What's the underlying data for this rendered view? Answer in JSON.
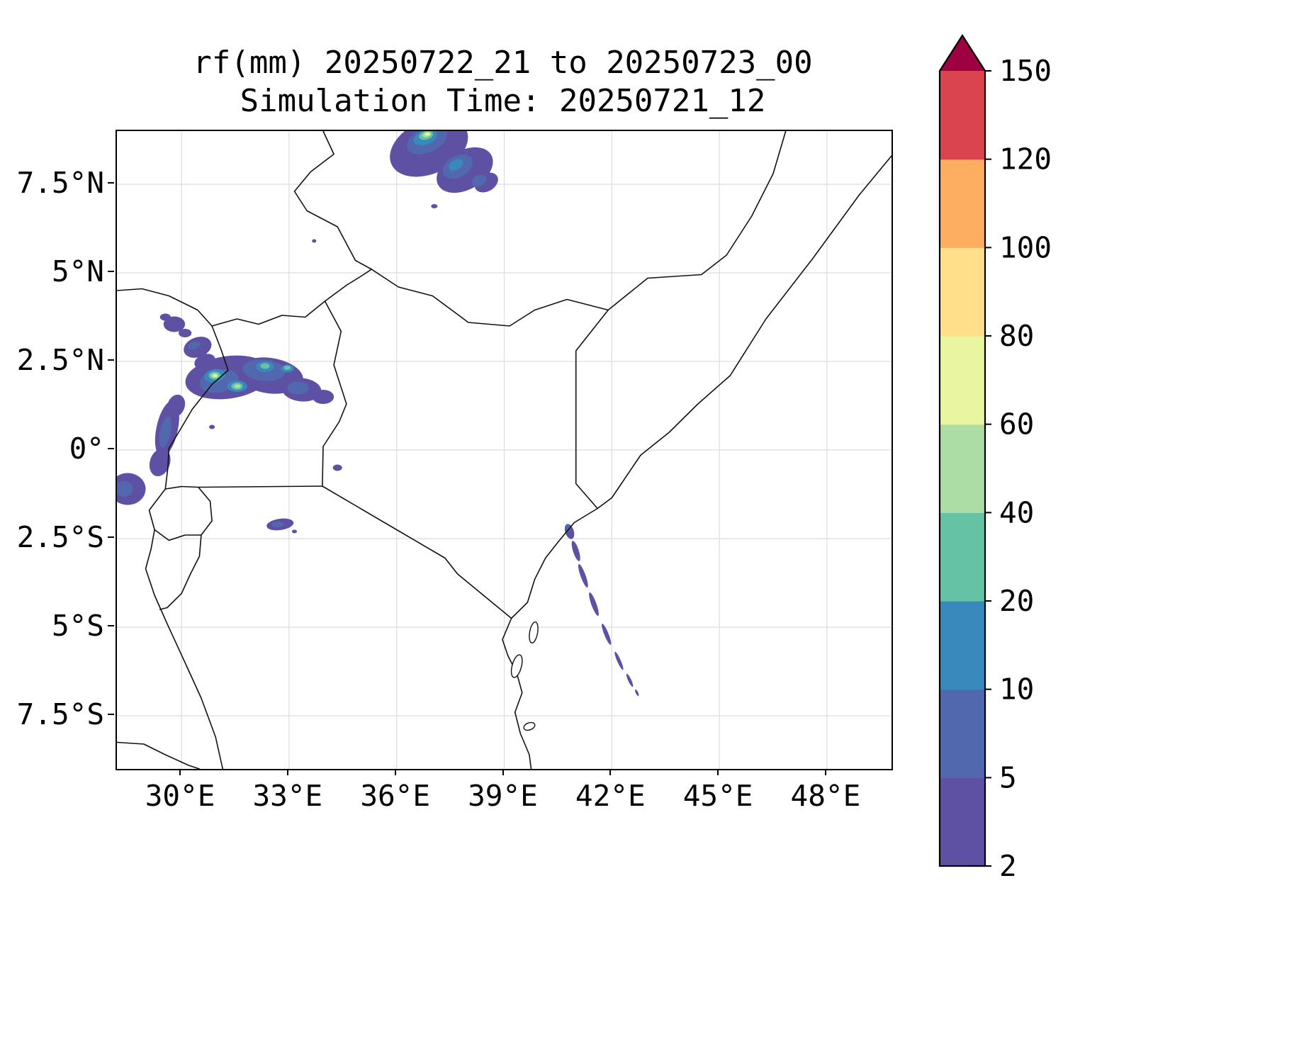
{
  "title": "rf(mm) 20250722_21 to 20250723_00",
  "subtitle": "Simulation Time: 20250721_12",
  "chart_data": {
    "type": "heatmap",
    "title": "rf(mm) 20250722_21 to 20250723_00",
    "subtitle": "Simulation Time: 20250721_12",
    "variable": "rainfall accumulation rf (mm) over East Africa",
    "grid": true,
    "legend_position": "right-colorbar",
    "x_axis": {
      "tick_labels": [
        "30°E",
        "33°E",
        "36°E",
        "39°E",
        "42°E",
        "45°E",
        "48°E"
      ],
      "tick_values": [
        30,
        33,
        36,
        39,
        42,
        45,
        48
      ],
      "range": [
        28.2,
        49.8
      ]
    },
    "y_axis": {
      "tick_labels": [
        "7.5°N",
        "5°N",
        "2.5°N",
        "0°",
        "2.5°S",
        "5°S",
        "7.5°S"
      ],
      "tick_values": [
        7.5,
        5,
        2.5,
        0,
        -2.5,
        -5,
        -7.5
      ],
      "range": [
        -9,
        9
      ]
    },
    "colorbar": {
      "levels": [
        2,
        5,
        10,
        20,
        40,
        60,
        80,
        100,
        120,
        150
      ],
      "labels": [
        "2",
        "5",
        "10",
        "20",
        "40",
        "60",
        "80",
        "100",
        "120",
        "150"
      ],
      "colors": [
        "#5e50a2",
        "#5268ae",
        "#3989bd",
        "#66c2a5",
        "#abdda4",
        "#e9f69f",
        "#fee08b",
        "#fdae61",
        "#d9444f"
      ],
      "extend_color": "#9e0142"
    },
    "rain_cells": [
      {
        "lon": 36.9,
        "lat": 8.55,
        "rx": 1.15,
        "ry": 0.75,
        "rot": -25,
        "level": 2
      },
      {
        "lon": 37.9,
        "lat": 7.9,
        "rx": 0.85,
        "ry": 0.55,
        "rot": -30,
        "level": 2
      },
      {
        "lon": 38.5,
        "lat": 7.55,
        "rx": 0.35,
        "ry": 0.25,
        "rot": -30,
        "level": 2
      },
      {
        "lon": 36.1,
        "lat": 8.65,
        "rx": 0.16,
        "ry": 0.11,
        "rot": 0,
        "level": 2
      },
      {
        "lon": 37.05,
        "lat": 6.88,
        "rx": 0.09,
        "ry": 0.06,
        "rot": 0,
        "level": 2
      },
      {
        "lon": 36.85,
        "lat": 8.75,
        "rx": 0.6,
        "ry": 0.35,
        "rot": -25,
        "level": 5
      },
      {
        "lon": 37.7,
        "lat": 8.0,
        "rx": 0.45,
        "ry": 0.3,
        "rot": -30,
        "level": 5
      },
      {
        "lon": 38.3,
        "lat": 7.6,
        "rx": 0.22,
        "ry": 0.15,
        "rot": -30,
        "level": 5
      },
      {
        "lon": 36.8,
        "lat": 8.82,
        "rx": 0.34,
        "ry": 0.2,
        "rot": -20,
        "level": 10
      },
      {
        "lon": 37.65,
        "lat": 8.05,
        "rx": 0.22,
        "ry": 0.14,
        "rot": -30,
        "level": 10
      },
      {
        "lon": 36.82,
        "lat": 8.88,
        "rx": 0.2,
        "ry": 0.12,
        "rot": -15,
        "level": 20
      },
      {
        "lon": 36.84,
        "lat": 8.9,
        "rx": 0.12,
        "ry": 0.07,
        "rot": -15,
        "level": 40
      },
      {
        "lon": 36.86,
        "lat": 8.92,
        "rx": 0.07,
        "ry": 0.045,
        "rot": 0,
        "level": 60
      },
      {
        "lon": 29.8,
        "lat": 3.55,
        "rx": 0.3,
        "ry": 0.22,
        "rot": 0,
        "level": 2
      },
      {
        "lon": 29.55,
        "lat": 3.75,
        "rx": 0.15,
        "ry": 0.1,
        "rot": 0,
        "level": 2
      },
      {
        "lon": 30.1,
        "lat": 3.3,
        "rx": 0.18,
        "ry": 0.12,
        "rot": 0,
        "level": 2
      },
      {
        "lon": 30.45,
        "lat": 2.9,
        "rx": 0.4,
        "ry": 0.28,
        "rot": -20,
        "level": 2
      },
      {
        "lon": 30.35,
        "lat": 2.95,
        "rx": 0.18,
        "ry": 0.1,
        "rot": -20,
        "level": 5
      },
      {
        "lon": 31.3,
        "lat": 2.05,
        "rx": 1.2,
        "ry": 0.6,
        "rot": -8,
        "level": 2
      },
      {
        "lon": 32.45,
        "lat": 2.1,
        "rx": 0.95,
        "ry": 0.5,
        "rot": 8,
        "level": 2
      },
      {
        "lon": 33.35,
        "lat": 1.7,
        "rx": 0.55,
        "ry": 0.33,
        "rot": 5,
        "level": 2
      },
      {
        "lon": 33.95,
        "lat": 1.5,
        "rx": 0.3,
        "ry": 0.2,
        "rot": 0,
        "level": 2
      },
      {
        "lon": 30.65,
        "lat": 2.5,
        "rx": 0.3,
        "ry": 0.2,
        "rot": -20,
        "level": 2
      },
      {
        "lon": 29.85,
        "lat": 1.25,
        "rx": 0.24,
        "ry": 0.32,
        "rot": 20,
        "level": 2
      },
      {
        "lon": 31.05,
        "lat": 1.95,
        "rx": 0.55,
        "ry": 0.32,
        "rot": -10,
        "level": 5
      },
      {
        "lon": 32.3,
        "lat": 2.25,
        "rx": 0.6,
        "ry": 0.3,
        "rot": 5,
        "level": 5
      },
      {
        "lon": 33.25,
        "lat": 1.75,
        "rx": 0.3,
        "ry": 0.18,
        "rot": 0,
        "level": 5
      },
      {
        "lon": 30.93,
        "lat": 2.1,
        "rx": 0.3,
        "ry": 0.18,
        "rot": -10,
        "level": 10
      },
      {
        "lon": 31.55,
        "lat": 1.8,
        "rx": 0.28,
        "ry": 0.16,
        "rot": 0,
        "level": 10
      },
      {
        "lon": 32.33,
        "lat": 2.35,
        "rx": 0.25,
        "ry": 0.15,
        "rot": 0,
        "level": 10
      },
      {
        "lon": 32.95,
        "lat": 2.3,
        "rx": 0.18,
        "ry": 0.11,
        "rot": 0,
        "level": 10
      },
      {
        "lon": 30.93,
        "lat": 2.1,
        "rx": 0.17,
        "ry": 0.11,
        "rot": 0,
        "level": 20
      },
      {
        "lon": 31.55,
        "lat": 1.8,
        "rx": 0.16,
        "ry": 0.1,
        "rot": 0,
        "level": 20
      },
      {
        "lon": 32.33,
        "lat": 2.37,
        "rx": 0.13,
        "ry": 0.08,
        "rot": 0,
        "level": 20
      },
      {
        "lon": 32.95,
        "lat": 2.32,
        "rx": 0.1,
        "ry": 0.06,
        "rot": 0,
        "level": 20
      },
      {
        "lon": 30.93,
        "lat": 2.1,
        "rx": 0.1,
        "ry": 0.065,
        "rot": 0,
        "level": 40
      },
      {
        "lon": 31.56,
        "lat": 1.8,
        "rx": 0.09,
        "ry": 0.055,
        "rot": 0,
        "level": 40
      },
      {
        "lon": 30.94,
        "lat": 2.1,
        "rx": 0.055,
        "ry": 0.04,
        "rot": 0,
        "level": 60
      },
      {
        "lon": 29.6,
        "lat": 0.6,
        "rx": 0.3,
        "ry": 0.8,
        "rot": 12,
        "level": 2
      },
      {
        "lon": 29.55,
        "lat": 0.5,
        "rx": 0.15,
        "ry": 0.45,
        "rot": 12,
        "level": 5
      },
      {
        "lon": 29.4,
        "lat": -0.35,
        "rx": 0.28,
        "ry": 0.4,
        "rot": 18,
        "level": 2
      },
      {
        "lon": 28.5,
        "lat": -1.1,
        "rx": 0.5,
        "ry": 0.45,
        "rot": 0,
        "level": 2
      },
      {
        "lon": 28.4,
        "lat": -1.1,
        "rx": 0.25,
        "ry": 0.22,
        "rot": 0,
        "level": 5
      },
      {
        "lon": 30.85,
        "lat": 0.65,
        "rx": 0.08,
        "ry": 0.06,
        "rot": 0,
        "level": 2
      },
      {
        "lon": 34.35,
        "lat": -0.5,
        "rx": 0.13,
        "ry": 0.09,
        "rot": 0,
        "level": 2
      },
      {
        "lon": 33.7,
        "lat": 5.9,
        "rx": 0.06,
        "ry": 0.05,
        "rot": 0,
        "level": 2
      },
      {
        "lon": 32.75,
        "lat": -2.1,
        "rx": 0.38,
        "ry": 0.16,
        "rot": -8,
        "level": 2
      },
      {
        "lon": 32.68,
        "lat": -2.1,
        "rx": 0.17,
        "ry": 0.08,
        "rot": 0,
        "level": 5
      },
      {
        "lon": 33.15,
        "lat": -2.3,
        "rx": 0.07,
        "ry": 0.05,
        "rot": 0,
        "level": 2
      },
      {
        "lon": 40.82,
        "lat": -2.3,
        "rx": 0.12,
        "ry": 0.22,
        "rot": -18,
        "level": 2
      },
      {
        "lon": 40.78,
        "lat": -2.2,
        "rx": 0.07,
        "ry": 0.1,
        "rot": 0,
        "level": 5
      },
      {
        "lon": 41.0,
        "lat": -2.85,
        "rx": 0.08,
        "ry": 0.3,
        "rot": -18,
        "level": 2
      },
      {
        "lon": 41.2,
        "lat": -3.55,
        "rx": 0.07,
        "ry": 0.35,
        "rot": -20,
        "level": 2
      },
      {
        "lon": 41.5,
        "lat": -4.35,
        "rx": 0.07,
        "ry": 0.35,
        "rot": -20,
        "level": 2
      },
      {
        "lon": 41.85,
        "lat": -5.2,
        "rx": 0.06,
        "ry": 0.32,
        "rot": -22,
        "level": 2
      },
      {
        "lon": 42.2,
        "lat": -5.95,
        "rx": 0.05,
        "ry": 0.28,
        "rot": -24,
        "level": 2
      },
      {
        "lon": 42.5,
        "lat": -6.5,
        "rx": 0.045,
        "ry": 0.2,
        "rot": -25,
        "level": 2
      },
      {
        "lon": 42.7,
        "lat": -6.85,
        "rx": 0.035,
        "ry": 0.1,
        "rot": -25,
        "level": 2
      }
    ]
  },
  "map": {
    "lon_min": 28.2,
    "lon_max": 49.8,
    "lat_min": -9,
    "lat_max": 9,
    "border_color": "#111111",
    "grid_color": "#dcdcdc",
    "borders": {
      "indian-ocean-coast": [
        [
          49.8,
          8.3
        ],
        [
          48.9,
          7.2
        ],
        [
          47.6,
          5.4
        ],
        [
          46.3,
          3.7
        ],
        [
          45.3,
          2.1
        ],
        [
          44.4,
          1.3
        ],
        [
          43.6,
          0.5
        ],
        [
          42.8,
          -0.15
        ],
        [
          42.0,
          -1.35
        ],
        [
          41.6,
          -1.65
        ],
        [
          40.95,
          -2.05
        ],
        [
          40.5,
          -2.6
        ],
        [
          40.15,
          -3.05
        ],
        [
          39.85,
          -3.65
        ],
        [
          39.65,
          -4.3
        ],
        [
          39.2,
          -4.75
        ],
        [
          38.95,
          -5.35
        ],
        [
          39.1,
          -5.8
        ],
        [
          39.35,
          -6.3
        ],
        [
          39.5,
          -6.85
        ],
        [
          39.3,
          -7.4
        ],
        [
          39.45,
          -8.0
        ],
        [
          39.7,
          -8.6
        ],
        [
          39.75,
          -9.0
        ]
      ],
      "kenya-somalia": [
        [
          41.6,
          -1.65
        ],
        [
          41.0,
          -0.95
        ],
        [
          41.0,
          2.8
        ],
        [
          41.9,
          3.95
        ]
      ],
      "ethiopia-somalia": [
        [
          41.9,
          3.95
        ],
        [
          43.0,
          4.85
        ],
        [
          44.5,
          4.95
        ],
        [
          45.2,
          5.5
        ],
        [
          45.9,
          6.6
        ],
        [
          46.5,
          7.8
        ],
        [
          46.85,
          9.0
        ]
      ],
      "ethiopia-kenya": [
        [
          41.9,
          3.95
        ],
        [
          40.75,
          4.25
        ],
        [
          39.85,
          3.95
        ],
        [
          39.15,
          3.5
        ],
        [
          38.0,
          3.6
        ],
        [
          37.0,
          4.35
        ],
        [
          36.05,
          4.6
        ],
        [
          35.3,
          5.1
        ]
      ],
      "southsudan-ethiopia": [
        [
          35.3,
          5.1
        ],
        [
          34.85,
          5.35
        ],
        [
          34.35,
          6.3
        ],
        [
          33.5,
          6.75
        ],
        [
          33.15,
          7.3
        ],
        [
          33.6,
          7.85
        ],
        [
          34.25,
          8.35
        ],
        [
          33.95,
          9.0
        ]
      ],
      "southsudan-uganda-kenya": [
        [
          28.2,
          4.5
        ],
        [
          28.9,
          4.55
        ],
        [
          29.65,
          4.35
        ],
        [
          30.45,
          3.95
        ],
        [
          30.85,
          3.5
        ],
        [
          31.55,
          3.7
        ],
        [
          32.15,
          3.55
        ],
        [
          32.8,
          3.8
        ],
        [
          33.45,
          3.75
        ],
        [
          34.0,
          4.2
        ],
        [
          34.6,
          4.65
        ],
        [
          35.0,
          4.9
        ],
        [
          35.3,
          5.1
        ]
      ],
      "uganda-kenya": [
        [
          34.0,
          4.2
        ],
        [
          34.45,
          3.35
        ],
        [
          34.25,
          2.4
        ],
        [
          34.6,
          1.3
        ],
        [
          34.4,
          0.8
        ],
        [
          33.95,
          0.1
        ],
        [
          33.93,
          -1.02
        ]
      ],
      "uganda-tanzania": [
        [
          30.47,
          -1.05
        ],
        [
          33.93,
          -1.02
        ]
      ],
      "kenya-tanzania": [
        [
          33.93,
          -1.02
        ],
        [
          36.0,
          -2.25
        ],
        [
          37.35,
          -3.05
        ],
        [
          37.7,
          -3.5
        ],
        [
          39.2,
          -4.75
        ]
      ],
      "drc-uganda": [
        [
          30.85,
          3.5
        ],
        [
          31.1,
          2.85
        ],
        [
          31.3,
          2.25
        ],
        [
          30.85,
          1.85
        ],
        [
          30.3,
          1.15
        ],
        [
          29.95,
          0.55
        ],
        [
          29.65,
          0.05
        ],
        [
          29.62,
          -0.5
        ],
        [
          29.55,
          -1.1
        ]
      ],
      "drc-lake-tanganyika": [
        [
          29.55,
          -1.1
        ],
        [
          29.1,
          -1.7
        ],
        [
          29.25,
          -2.25
        ],
        [
          29.15,
          -2.8
        ],
        [
          29.0,
          -3.35
        ],
        [
          29.25,
          -4.1
        ],
        [
          29.6,
          -4.9
        ],
        [
          30.1,
          -6.0
        ],
        [
          30.55,
          -7.0
        ],
        [
          30.95,
          -8.1
        ],
        [
          31.15,
          -9.0
        ]
      ],
      "uganda-rwanda": [
        [
          29.55,
          -1.1
        ],
        [
          30.0,
          -1.03
        ],
        [
          30.47,
          -1.05
        ]
      ],
      "rwanda-burundi-east": [
        [
          30.47,
          -1.05
        ],
        [
          30.8,
          -1.45
        ],
        [
          30.85,
          -2.0
        ],
        [
          30.55,
          -2.4
        ],
        [
          30.5,
          -3.0
        ],
        [
          30.25,
          -3.5
        ],
        [
          30.0,
          -4.05
        ],
        [
          29.6,
          -4.45
        ],
        [
          29.4,
          -4.5
        ]
      ],
      "rwanda-burundi": [
        [
          29.25,
          -2.25
        ],
        [
          29.65,
          -2.55
        ],
        [
          30.1,
          -2.4
        ],
        [
          30.55,
          -2.4
        ]
      ],
      "drc-zambia-tanzania": [
        [
          28.2,
          -8.25
        ],
        [
          28.95,
          -8.3
        ],
        [
          29.55,
          -8.6
        ],
        [
          30.2,
          -8.9
        ],
        [
          30.5,
          -9.0
        ]
      ]
    },
    "islands": [
      {
        "name": "pemba",
        "lon": 39.82,
        "lat": -5.15,
        "rx": 0.11,
        "ry": 0.3,
        "rot": 10
      },
      {
        "name": "zanzibar",
        "lon": 39.35,
        "lat": -6.1,
        "rx": 0.13,
        "ry": 0.33,
        "rot": 15
      },
      {
        "name": "mafia",
        "lon": 39.7,
        "lat": -7.8,
        "rx": 0.16,
        "ry": 0.1,
        "rot": -20
      }
    ]
  }
}
